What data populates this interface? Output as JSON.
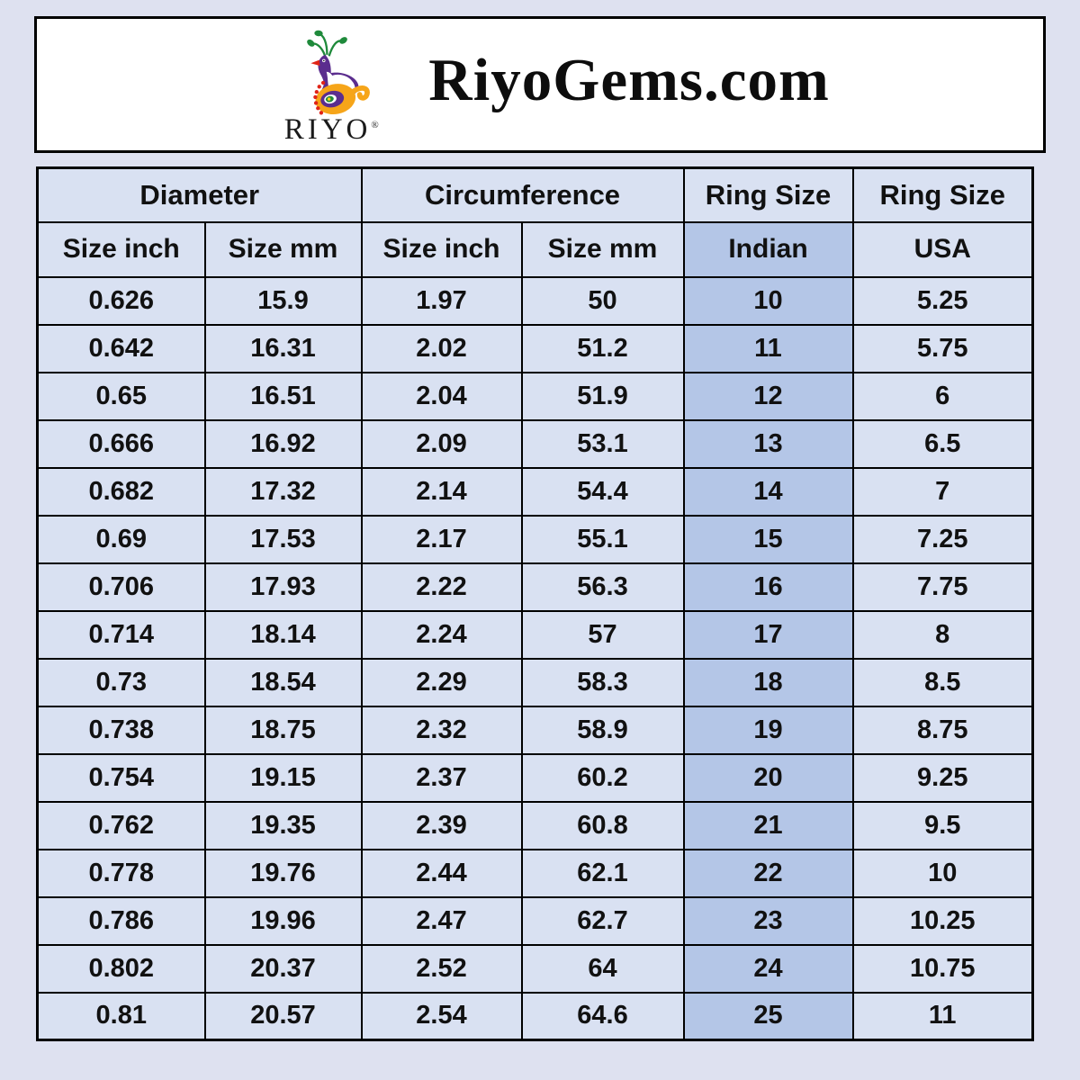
{
  "header": {
    "brand": "RIYO",
    "registered": "®",
    "title": "RiyoGems.com"
  },
  "chart_data": {
    "type": "table",
    "column_groups": [
      {
        "label": "Diameter",
        "span": 2
      },
      {
        "label": "Circumference",
        "span": 2
      },
      {
        "label": "Ring Size",
        "span": 1
      },
      {
        "label": "Ring Size",
        "span": 1
      }
    ],
    "columns": [
      "Size inch",
      "Size mm",
      "Size inch",
      "Size mm",
      "Indian",
      "USA"
    ],
    "highlighted_column": "Indian",
    "rows": [
      [
        "0.626",
        "15.9",
        "1.97",
        "50",
        "10",
        "5.25"
      ],
      [
        "0.642",
        "16.31",
        "2.02",
        "51.2",
        "11",
        "5.75"
      ],
      [
        "0.65",
        "16.51",
        "2.04",
        "51.9",
        "12",
        "6"
      ],
      [
        "0.666",
        "16.92",
        "2.09",
        "53.1",
        "13",
        "6.5"
      ],
      [
        "0.682",
        "17.32",
        "2.14",
        "54.4",
        "14",
        "7"
      ],
      [
        "0.69",
        "17.53",
        "2.17",
        "55.1",
        "15",
        "7.25"
      ],
      [
        "0.706",
        "17.93",
        "2.22",
        "56.3",
        "16",
        "7.75"
      ],
      [
        "0.714",
        "18.14",
        "2.24",
        "57",
        "17",
        "8"
      ],
      [
        "0.73",
        "18.54",
        "2.29",
        "58.3",
        "18",
        "8.5"
      ],
      [
        "0.738",
        "18.75",
        "2.32",
        "58.9",
        "19",
        "8.75"
      ],
      [
        "0.754",
        "19.15",
        "2.37",
        "60.2",
        "20",
        "9.25"
      ],
      [
        "0.762",
        "19.35",
        "2.39",
        "60.8",
        "21",
        "9.5"
      ],
      [
        "0.778",
        "19.76",
        "2.44",
        "62.1",
        "22",
        "10"
      ],
      [
        "0.786",
        "19.96",
        "2.47",
        "62.7",
        "23",
        "10.25"
      ],
      [
        "0.802",
        "20.37",
        "2.52",
        "64",
        "24",
        "10.75"
      ],
      [
        "0.81",
        "20.57",
        "2.54",
        "64.6",
        "25",
        "11"
      ]
    ]
  },
  "colors": {
    "page_bg": "#dee1f0",
    "cell_bg": "#d9e1f2",
    "highlight_bg": "#b4c6e7",
    "border": "#000000",
    "header_bg": "#ffffff",
    "text": "#111111",
    "accent_purple": "#5b2d8e",
    "accent_orange": "#f6a519",
    "accent_green": "#1f8a3b",
    "accent_red": "#e02417",
    "accent_yellow": "#f6d21c"
  }
}
